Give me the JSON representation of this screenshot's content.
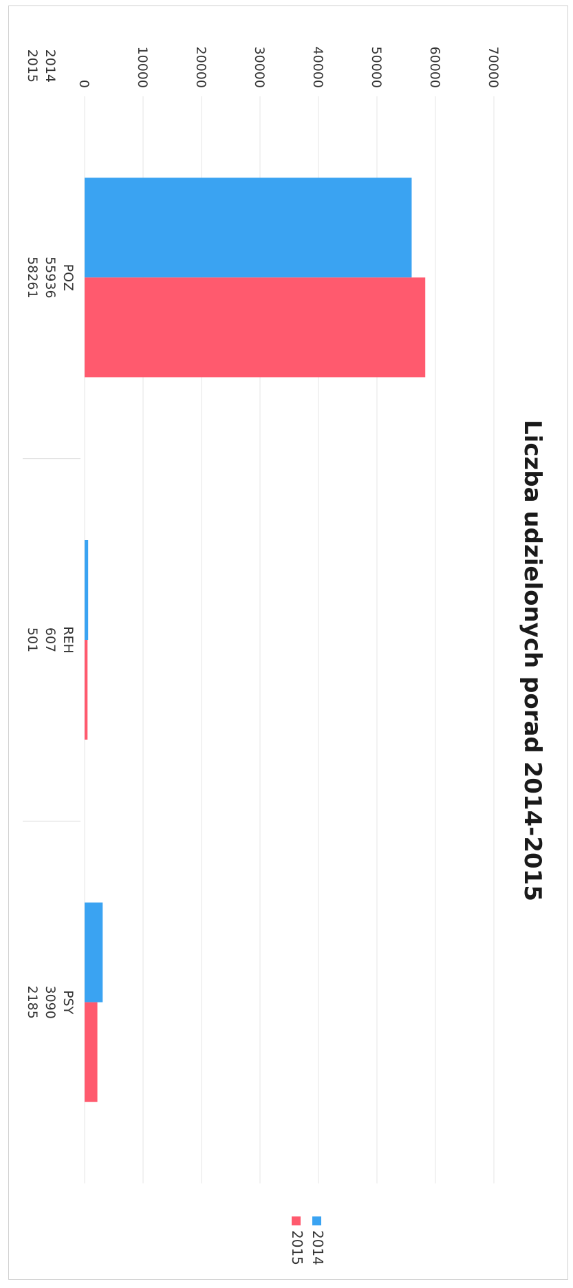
{
  "chart_data": {
    "type": "bar",
    "title": "Liczba udzielonych porad 2014-2015",
    "categories": [
      "POZ",
      "REH",
      "PSY"
    ],
    "series": [
      {
        "name": "2014",
        "values": [
          55936,
          607,
          3090
        ],
        "color": "#3aa3f2"
      },
      {
        "name": "2015",
        "values": [
          58261,
          501,
          2185
        ],
        "color": "#ff5a6e"
      }
    ],
    "y_ticks": [
      "0",
      "10000",
      "20000",
      "30000",
      "40000",
      "50000",
      "60000",
      "70000"
    ],
    "ylim": [
      0,
      70000
    ],
    "grid": true,
    "legend_position": "right",
    "data_table": true,
    "orientation": "rotated-90-clockwise"
  }
}
